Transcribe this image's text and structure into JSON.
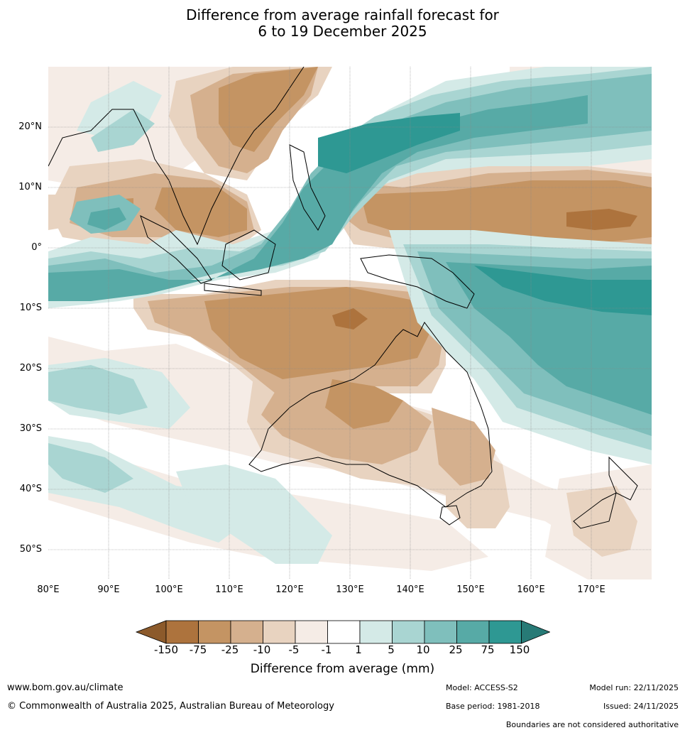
{
  "title": {
    "line1": "Difference from average rainfall forecast for",
    "line2": "6 to 19 December 2025"
  },
  "map": {
    "latitude_labels": [
      "20°N",
      "10°N",
      "0°",
      "10°S",
      "20°S",
      "30°S",
      "40°S",
      "50°S"
    ],
    "longitude_labels": [
      "80°E",
      "90°E",
      "100°E",
      "110°E",
      "120°E",
      "130°E",
      "140°E",
      "150°E",
      "160°E",
      "170°E"
    ],
    "extent": {
      "lon": [
        80,
        180
      ],
      "lat": [
        -55,
        30
      ]
    }
  },
  "colorbar": {
    "label": "Difference from average (mm)",
    "ticks": [
      "-150",
      "-75",
      "-25",
      "-10",
      "-5",
      "-1",
      "1",
      "5",
      "10",
      "25",
      "75",
      "150"
    ],
    "colors": [
      "#8c5a2b",
      "#ad733d",
      "#c49463",
      "#d5b08e",
      "#e8d3c0",
      "#f5ece6",
      "#ffffff",
      "#d4eae7",
      "#a9d5d2",
      "#7fbfbc",
      "#57aaa6",
      "#2e9893",
      "#277a76"
    ]
  },
  "footer": {
    "website": "www.bom.gov.au/climate",
    "copyright": "© Commonwealth of Australia 2025, Australian Bureau of Meteorology",
    "model": "Model: ACCESS-S2",
    "base_period": "Base period: 1981-2018",
    "model_run": "Model run: 22/11/2025",
    "issued": "Issued: 24/11/2025",
    "disclaimer": "Boundaries are not considered authoritative"
  }
}
